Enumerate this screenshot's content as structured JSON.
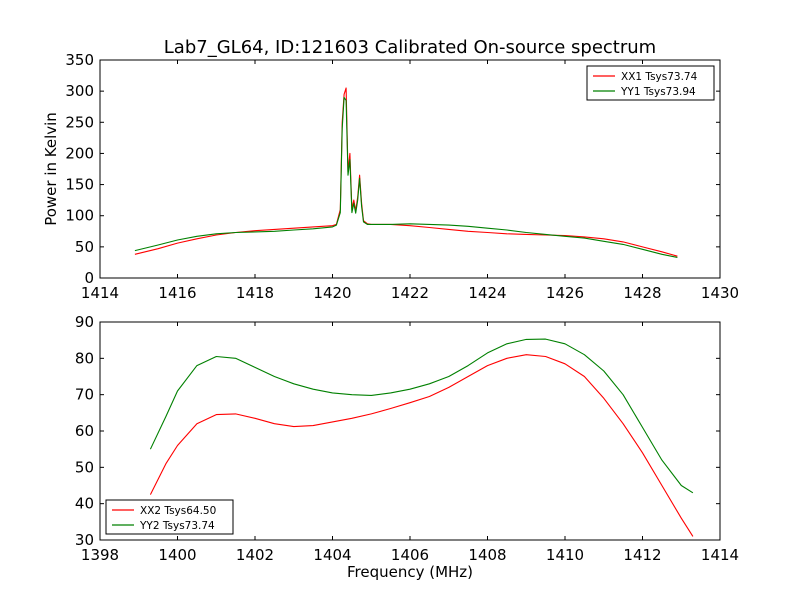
{
  "title": "Lab7_GL64, ID:121603 Calibrated On-source spectrum",
  "chart_data": [
    {
      "type": "line",
      "title": "Lab7_GL64, ID:121603 Calibrated On-source spectrum",
      "xlabel": "",
      "ylabel": "Power in Kelvin",
      "xlim": [
        1414,
        1430
      ],
      "ylim": [
        0,
        350
      ],
      "xticks": [
        1414,
        1416,
        1418,
        1420,
        1422,
        1424,
        1426,
        1428,
        1430
      ],
      "yticks": [
        0,
        50,
        100,
        150,
        200,
        250,
        300,
        350
      ],
      "grid": false,
      "legend_position": "top-right",
      "series": [
        {
          "name": "XX1 Tsys73.74",
          "color": "#ff0000",
          "x": [
            1414.9,
            1415.5,
            1416.0,
            1416.5,
            1417.0,
            1417.5,
            1418.0,
            1418.5,
            1419.0,
            1419.5,
            1420.0,
            1420.1,
            1420.2,
            1420.25,
            1420.3,
            1420.35,
            1420.4,
            1420.45,
            1420.5,
            1420.55,
            1420.6,
            1420.65,
            1420.7,
            1420.75,
            1420.8,
            1420.9,
            1421.0,
            1421.5,
            1422.0,
            1422.5,
            1423.0,
            1423.5,
            1424.0,
            1424.5,
            1425.0,
            1425.5,
            1426.0,
            1426.5,
            1427.0,
            1427.5,
            1428.0,
            1428.5,
            1428.9
          ],
          "y": [
            38,
            47,
            56,
            63,
            69,
            73,
            76,
            78,
            80,
            82,
            84,
            86,
            110,
            250,
            295,
            305,
            170,
            200,
            110,
            125,
            108,
            130,
            165,
            120,
            92,
            87,
            86,
            86,
            84,
            81,
            78,
            75,
            73,
            71,
            70,
            69,
            68,
            66,
            63,
            58,
            50,
            42,
            35
          ]
        },
        {
          "name": "YY1 Tsys73.94",
          "color": "#008000",
          "x": [
            1414.9,
            1415.5,
            1416.0,
            1416.5,
            1417.0,
            1417.5,
            1418.0,
            1418.5,
            1419.0,
            1419.5,
            1420.0,
            1420.1,
            1420.2,
            1420.25,
            1420.3,
            1420.35,
            1420.4,
            1420.45,
            1420.5,
            1420.55,
            1420.6,
            1420.65,
            1420.7,
            1420.75,
            1420.8,
            1420.9,
            1421.0,
            1421.5,
            1422.0,
            1422.5,
            1423.0,
            1423.5,
            1424.0,
            1424.5,
            1425.0,
            1425.5,
            1426.0,
            1426.5,
            1427.0,
            1427.5,
            1428.0,
            1428.5,
            1428.9
          ],
          "y": [
            44,
            53,
            61,
            67,
            71,
            73,
            74,
            75,
            77,
            79,
            82,
            85,
            105,
            240,
            290,
            285,
            165,
            190,
            105,
            120,
            104,
            125,
            160,
            115,
            90,
            86,
            86,
            86,
            87,
            86,
            85,
            83,
            80,
            77,
            73,
            70,
            67,
            64,
            59,
            54,
            46,
            38,
            33
          ]
        }
      ]
    },
    {
      "type": "line",
      "title": "",
      "xlabel": "Frequency (MHz)",
      "ylabel": "",
      "xlim": [
        1398,
        1414
      ],
      "ylim": [
        30,
        90
      ],
      "xticks": [
        1398,
        1400,
        1402,
        1404,
        1406,
        1408,
        1410,
        1412,
        1414
      ],
      "yticks": [
        30,
        40,
        50,
        60,
        70,
        80,
        90
      ],
      "grid": false,
      "legend_position": "bottom-left",
      "series": [
        {
          "name": "XX2 Tsys64.50",
          "color": "#ff0000",
          "x": [
            1399.3,
            1399.7,
            1400.0,
            1400.5,
            1401.0,
            1401.5,
            1402.0,
            1402.5,
            1403.0,
            1403.5,
            1404.0,
            1404.5,
            1405.0,
            1405.5,
            1406.0,
            1406.5,
            1407.0,
            1407.5,
            1408.0,
            1408.5,
            1409.0,
            1409.5,
            1410.0,
            1410.5,
            1411.0,
            1411.5,
            1412.0,
            1412.5,
            1413.0,
            1413.3
          ],
          "y": [
            42.5,
            51,
            56,
            62,
            64.5,
            64.7,
            63.5,
            62,
            61.2,
            61.5,
            62.5,
            63.5,
            64.7,
            66.2,
            67.8,
            69.5,
            72,
            75,
            78,
            80,
            81,
            80.5,
            78.5,
            75,
            69,
            62,
            54,
            45,
            36,
            31
          ]
        },
        {
          "name": "YY2 Tsys73.74",
          "color": "#008000",
          "x": [
            1399.3,
            1399.7,
            1400.0,
            1400.5,
            1401.0,
            1401.5,
            1402.0,
            1402.5,
            1403.0,
            1403.5,
            1404.0,
            1404.5,
            1405.0,
            1405.5,
            1406.0,
            1406.5,
            1407.0,
            1407.5,
            1408.0,
            1408.5,
            1409.0,
            1409.5,
            1410.0,
            1410.5,
            1411.0,
            1411.5,
            1412.0,
            1412.5,
            1413.0,
            1413.3
          ],
          "y": [
            55,
            64,
            71,
            78,
            80.5,
            80,
            77.5,
            75,
            73,
            71.5,
            70.5,
            70,
            69.8,
            70.5,
            71.5,
            73,
            75,
            78,
            81.5,
            84,
            85.2,
            85.3,
            84,
            81,
            76.5,
            70,
            61,
            52,
            45,
            43
          ]
        }
      ]
    }
  ]
}
